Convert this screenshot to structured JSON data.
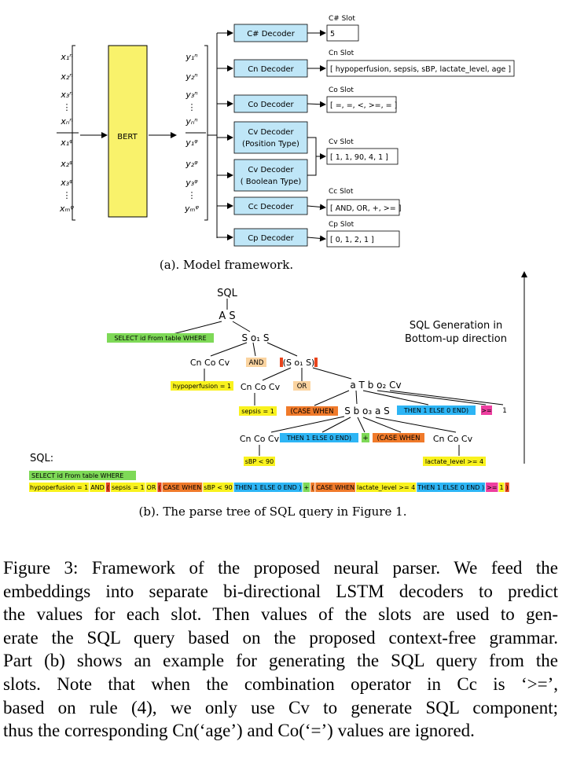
{
  "framework": {
    "encoder_label": "BERT",
    "inputs": [
      "x₁ⁿ",
      "x₂ⁿ",
      "x₃ⁿ",
      "⋮",
      "xₙⁿ",
      "x₁ᵠ",
      "x₂ᵠ",
      "x₃ᵠ",
      "⋮",
      "xₘᵠ"
    ],
    "outputs": [
      "y₁ⁿ",
      "y₂ⁿ",
      "y₃ⁿ",
      "⋮",
      "yₙⁿ",
      "y₁ᵠ",
      "y₂ᵠ",
      "y₃ᵠ",
      "⋮",
      "yₘᵠ"
    ],
    "decoders": [
      {
        "label": "C# Decoder"
      },
      {
        "label": "Cn Decoder"
      },
      {
        "label": "Co Decoder"
      },
      {
        "label": "Cv Decoder",
        "sublabel": "(Position Type)"
      },
      {
        "label": "Cv Decoder",
        "sublabel": "( Boolean Type)"
      },
      {
        "label": "Cc Decoder"
      },
      {
        "label": "Cp Decoder"
      }
    ],
    "slots": [
      {
        "title": "C# Slot",
        "value": "5"
      },
      {
        "title": "Cn Slot",
        "value": "[ hypoperfusion, sepsis, sBP, lactate_level, age ]"
      },
      {
        "title": "Co Slot",
        "value": "[ =, =, <, >=, = ]"
      },
      {
        "title": "Cv Slot",
        "value": "[ 1, 1, 90, 4, 1 ]"
      },
      {
        "title": "Cc Slot",
        "value": "[ AND, OR, +, >= ]"
      },
      {
        "title": "Cp Slot",
        "value": "[ 0, 1, 2, 1 ]"
      }
    ],
    "caption": "(a). Model framework."
  },
  "parse_tree": {
    "root": "SQL",
    "n_as": "A S",
    "n_s1": "S o₁ S",
    "n_cnov1": "Cn Co Cv",
    "n_and": "AND",
    "n_s2": "(S o₁ S)",
    "n_hypo": "hypoperfusion = 1",
    "n_cnov2": "Cn Co Cv",
    "n_or": "OR",
    "n_at": "a T b o₂ Cv",
    "n_sepsis": "sepsis = 1",
    "n_case1": "(CASE WHEN",
    "n_sbo3": "S b o₃ a S",
    "n_then1": "THEN 1 ELSE 0 END)",
    "n_ge": ">=",
    "n_one": "1",
    "n_cnov3": "Cn Co Cv",
    "n_then2": "THEN 1 ELSE 0 END)",
    "n_plus": "+",
    "n_case2": "(CASE WHEN",
    "n_cnov4": "Cn Co Cv",
    "n_sbp": "sBP < 90",
    "n_lactate": "lactate_level >= 4",
    "n_select": "SELECT id From table WHERE",
    "direction_line1": "SQL Generation in",
    "direction_line2": "Bottom-up direction",
    "sql_label": "SQL:",
    "sql_line1": "SELECT id From table WHERE",
    "sql_parts": [
      {
        "text": "hypoperfusion = 1",
        "bg": "#f9f21e"
      },
      {
        "text": "AND",
        "bg": "#f9f21e"
      },
      {
        "text": "(",
        "bg": "#e8441c"
      },
      {
        "text": "sepsis = 1",
        "bg": "#f9f21e"
      },
      {
        "text": "OR",
        "bg": "#f9f21e"
      },
      {
        "text": "(",
        "bg": "#e8441c"
      },
      {
        "text": "CASE WHEN",
        "bg": "#f07a2a"
      },
      {
        "text": "sBP < 90",
        "bg": "#f9f21e"
      },
      {
        "text": "THEN 1 ELSE 0 END )",
        "bg": "#2db5f5"
      },
      {
        "text": "+",
        "bg": "#7ed957"
      },
      {
        "text": "(",
        "bg": "#f07a2a"
      },
      {
        "text": "CASE WHEN",
        "bg": "#f07a2a"
      },
      {
        "text": "lactate_level >= 4",
        "bg": "#f9f21e"
      },
      {
        "text": "THEN 1 ELSE 0 END )",
        "bg": "#2db5f5"
      },
      {
        "text": ">=",
        "bg": "#ee3fa0"
      },
      {
        "text": "1",
        "bg": "#f9f21e"
      },
      {
        "text": ")",
        "bg": "#e8441c"
      }
    ],
    "caption": "(b). The parse tree of SQL query in Figure 1."
  },
  "colors": {
    "bert": "#f9f26b",
    "decoder": "#bfe6f7",
    "green": "#7ed957",
    "yellow": "#f9f21e",
    "orange": "#f07a2a",
    "red": "#e8441c",
    "blue": "#2db5f5",
    "pink": "#ee3fa0",
    "peach": "#fbd4a0"
  },
  "caption": {
    "lines": [
      "Figure 3: Framework of the proposed neural parser. We feed the",
      "embeddings into separate bi-directional LSTM decoders to predict",
      "the values for each slot. Then values of the slots are used to gen-",
      "erate the SQL query based on the proposed context-free grammar.",
      "Part (b) shows an example for generating the SQL query from the",
      "slots.  Note that when the combination operator in Cc is ‘>=’,",
      "based on rule (4), we only use Cv to generate SQL component;",
      "thus the corresponding Cn(‘age’) and Co(‘=’) values are ignored."
    ]
  }
}
